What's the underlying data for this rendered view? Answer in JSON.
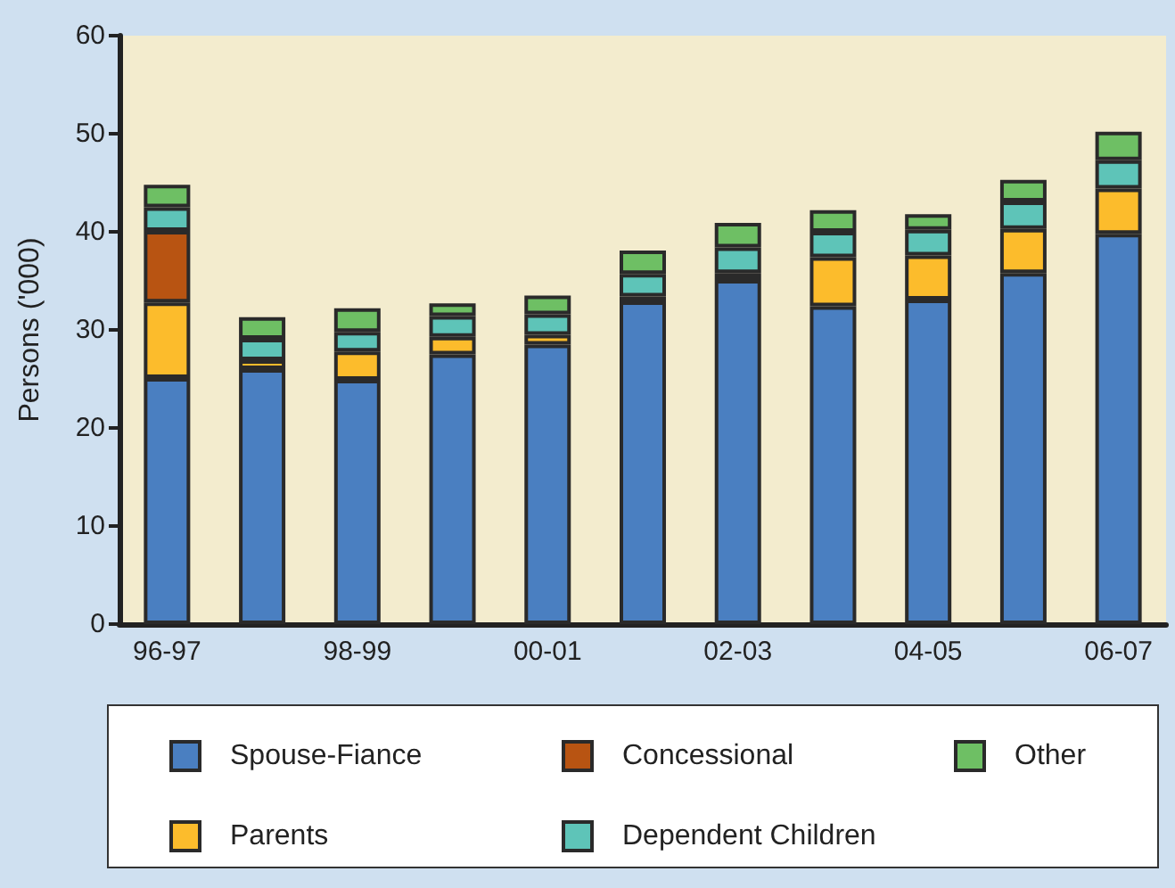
{
  "chart_data": {
    "type": "bar",
    "stacked": true,
    "ylabel": "Persons ('000)",
    "categories": [
      "96-97",
      null,
      "98-99",
      null,
      "00-01",
      null,
      "02-03",
      null,
      "04-05",
      null,
      "06-07"
    ],
    "series": [
      {
        "name": "Spouse-Fiance",
        "color": "#4a7fc1",
        "values": [
          25.1,
          26.0,
          24.9,
          27.5,
          28.5,
          32.9,
          35.1,
          32.4,
          33.1,
          35.8,
          39.8
        ]
      },
      {
        "name": "Parents",
        "color": "#fcbc2c",
        "values": [
          7.7,
          0.9,
          2.9,
          1.8,
          1.0,
          0.5,
          0.7,
          5.0,
          4.5,
          4.5,
          4.6
        ]
      },
      {
        "name": "Concessional",
        "color": "#b85412",
        "values": [
          7.3,
          null,
          null,
          null,
          null,
          null,
          null,
          null,
          null,
          null,
          null
        ]
      },
      {
        "name": "Dependent Children",
        "color": "#5ec4b8",
        "values": [
          2.4,
          2.2,
          2.0,
          2.1,
          2.1,
          2.3,
          2.6,
          2.6,
          2.6,
          2.8,
          2.9
        ]
      },
      {
        "name": "Other",
        "color": "#6ebf64",
        "values": [
          2.3,
          2.2,
          2.4,
          1.3,
          1.9,
          2.4,
          2.5,
          2.2,
          1.6,
          2.2,
          2.9
        ]
      }
    ],
    "ylim": [
      0,
      60
    ],
    "yticks": [
      0,
      10,
      20,
      30,
      40,
      50,
      60
    ],
    "grid": false,
    "legend": "bottom"
  }
}
